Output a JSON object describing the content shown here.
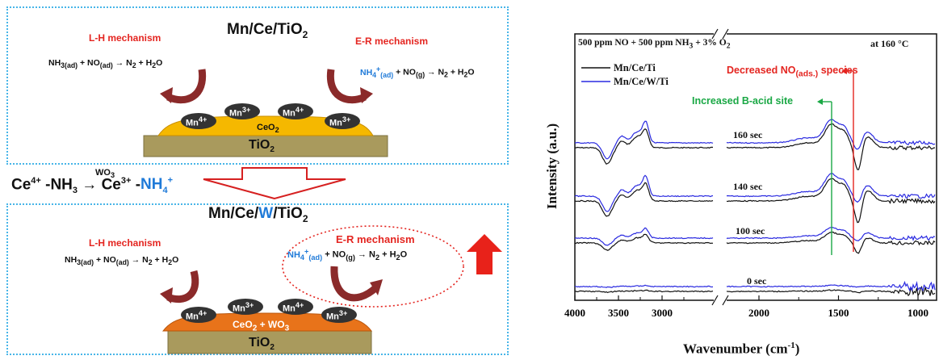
{
  "panel_top": {
    "title": "Mn/Ce/TiO2",
    "lh_label": "L-H mechanism",
    "er_label": "E-R mechanism",
    "lh_equation": "NH3(ad) + NO(ad) → N2 + H2O",
    "er_equation": "NH4+(ad) + NO(g) → N2 + H2O",
    "support_label": "TiO2",
    "layer_label": "CeO2",
    "mn_ions": [
      "Mn4+",
      "Mn3+",
      "Mn4+",
      "Mn3+"
    ]
  },
  "middle": {
    "equation": "Ce4+ -NH3 → Ce3+ -NH4+",
    "catalyst_over_arrow": "WO3"
  },
  "panel_bottom": {
    "title": "Mn/Ce/W/TiO2",
    "lh_label": "L-H mechanism",
    "er_label": "E-R mechanism",
    "lh_equation": "NH3(ad) + NO(ad) → N2 + H2O",
    "er_equation": "NH4+(ad) + NO(g) → N2 + H2O",
    "support_label": "TiO2",
    "layer_label": "CeO2 + WO3",
    "mn_ions": [
      "Mn4+",
      "Mn3+",
      "Mn4+",
      "Mn3+"
    ]
  },
  "spectrum": {
    "condition": "500 ppm NO + 500 ppm NH3 + 3% O2",
    "temperature": "at 160 °C",
    "legend": [
      {
        "name": "Mn/Ce/Ti",
        "color": "#111111"
      },
      {
        "name": "Mn/Ce/W/Ti",
        "color": "#2a2ae0"
      }
    ],
    "annotation_red": "Decreased NO(ads.) species",
    "annotation_green": "Increased B-acid site",
    "time_labels": [
      "160 sec",
      "140 sec",
      "100 sec",
      "0 sec"
    ],
    "ylabel": "Intensity (a.u.)",
    "xlabel": "Wavenumber (cm-1)",
    "x_ticks_left": [
      "4000",
      "3500",
      "3000"
    ],
    "x_ticks_right": [
      "2000",
      "1500",
      "1000"
    ]
  },
  "colors": {
    "panel_border": "#47b5e8",
    "ceo2": "#f5b800",
    "ceo2_wo3": "#e8731a",
    "tio2": "#a99a5d",
    "mn_ball": "#333333",
    "arrow": "#8b2a2a",
    "up_arrow": "#e8221a"
  }
}
